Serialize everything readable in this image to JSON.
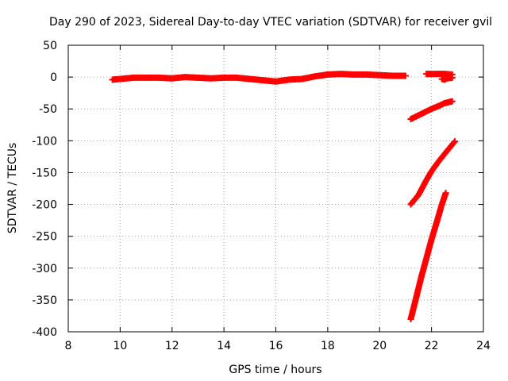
{
  "chart_data": {
    "type": "scatter",
    "title": "Day 290 of 2023, Sidereal Day-to-day VTEC variation (SDTVAR) for receiver gvil",
    "xlabel": "GPS time / hours",
    "ylabel": "SDTVAR / TECUs",
    "xlim": [
      8,
      24
    ],
    "ylim": [
      -400,
      50
    ],
    "xticks": [
      8,
      10,
      12,
      14,
      16,
      18,
      20,
      22,
      24
    ],
    "yticks": [
      50,
      0,
      -50,
      -100,
      -150,
      -200,
      -250,
      -300,
      -350,
      -400
    ],
    "grid": true,
    "legend": "none",
    "marker": "plus",
    "color": "#ff0000",
    "series": [
      {
        "x": [
          9.7,
          10.0,
          10.5,
          11.0,
          11.5,
          12.0,
          12.5,
          13.0,
          13.5,
          14.0,
          14.5,
          15.0,
          15.5,
          16.0,
          16.5,
          17.0,
          17.5,
          18.0,
          18.5,
          19.0,
          19.5,
          20.0,
          20.5,
          21.0
        ],
        "y": [
          -4,
          -3,
          -1,
          -1,
          -1,
          -2,
          0,
          -1,
          -2,
          -1,
          -1,
          -3,
          -5,
          -7,
          -4,
          -3,
          1,
          4,
          5,
          4,
          4,
          3,
          2,
          2
        ]
      },
      {
        "x": [
          21.8,
          22.0,
          22.3,
          22.5,
          22.8
        ],
        "y": [
          5,
          5,
          5,
          5,
          4
        ]
      },
      {
        "x": [
          22.4,
          22.5,
          22.6,
          22.8
        ],
        "y": [
          -3,
          -4,
          -2,
          -1
        ]
      },
      {
        "x": [
          21.2,
          21.5,
          21.8,
          22.0,
          22.3,
          22.5,
          22.8
        ],
        "y": [
          -66,
          -60,
          -54,
          -50,
          -45,
          -41,
          -38
        ]
      },
      {
        "x": [
          21.2,
          21.5,
          21.8,
          22.0,
          22.3,
          22.6,
          22.9
        ],
        "y": [
          -200,
          -185,
          -162,
          -148,
          -131,
          -116,
          -101
        ]
      },
      {
        "x": [
          21.2,
          21.4,
          21.6,
          21.8,
          22.0,
          22.2,
          22.4,
          22.55
        ],
        "y": [
          -380,
          -348,
          -315,
          -285,
          -255,
          -228,
          -200,
          -182
        ]
      }
    ]
  }
}
